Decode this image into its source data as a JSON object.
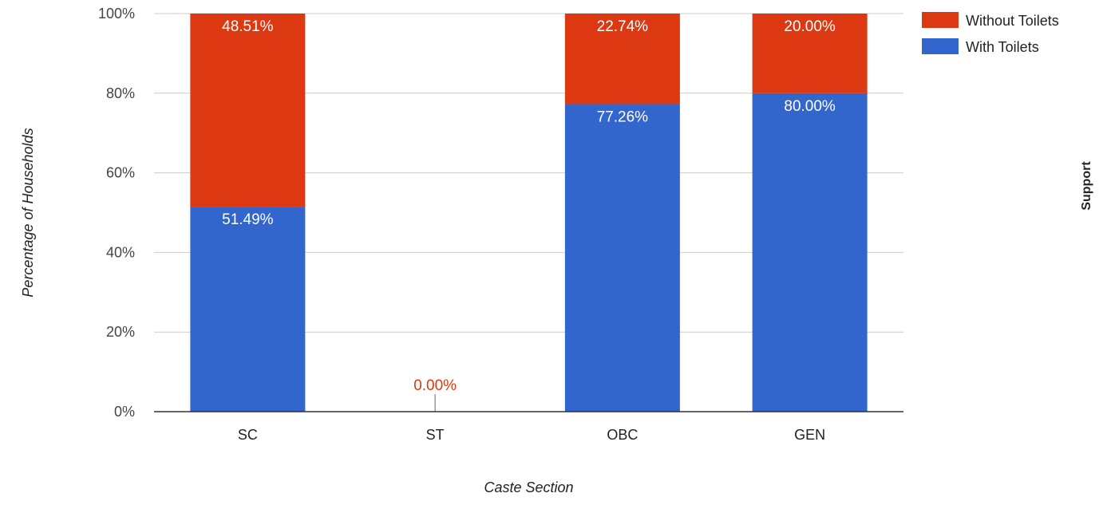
{
  "colors": {
    "with_toilets": "#3366cc",
    "without_toilets": "#dc3912",
    "gridline": "#cccccc",
    "axis": "#333333",
    "zero_label": "#dc3912"
  },
  "chart_data": {
    "type": "bar",
    "stacked": true,
    "categories": [
      "SC",
      "ST",
      "OBC",
      "GEN"
    ],
    "series": [
      {
        "name": "With Toilets",
        "values": [
          51.49,
          0,
          77.26,
          80.0
        ],
        "labels": [
          "51.49%",
          "",
          "77.26%",
          "80.00%"
        ]
      },
      {
        "name": "Without Toilets",
        "values": [
          48.51,
          0,
          22.74,
          20.0
        ],
        "labels": [
          "48.51%",
          "0.00%",
          "22.74%",
          "20.00%"
        ]
      }
    ],
    "xlabel": "Caste Section",
    "ylabel": "Percentage of Households",
    "right_label": "Support",
    "ylim": [
      0,
      100
    ],
    "yticks": [
      0,
      20,
      40,
      60,
      80,
      100
    ],
    "ytick_labels": [
      "0%",
      "20%",
      "40%",
      "60%",
      "80%",
      "100%"
    ],
    "grid": true,
    "legend_position": "top-right",
    "legend": [
      "Without Toilets",
      "With Toilets"
    ]
  }
}
